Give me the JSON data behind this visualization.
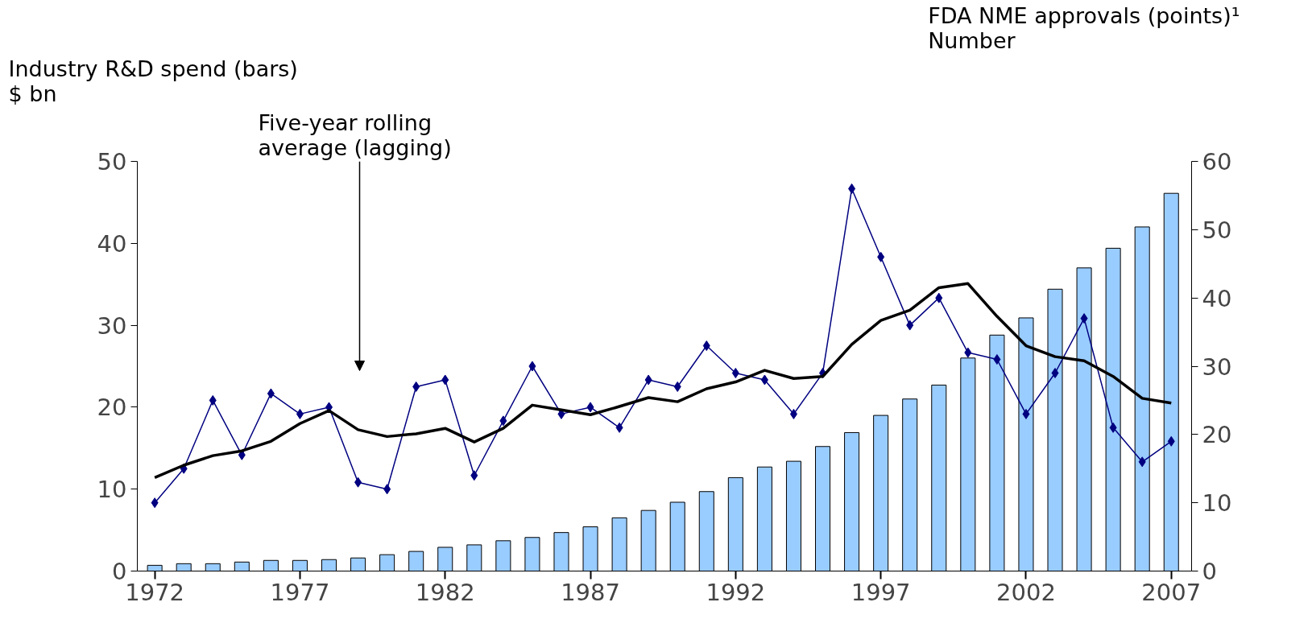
{
  "chart_data": {
    "type": "bar",
    "x": [
      1972,
      1973,
      1974,
      1975,
      1976,
      1977,
      1978,
      1979,
      1980,
      1981,
      1982,
      1983,
      1984,
      1985,
      1986,
      1987,
      1988,
      1989,
      1990,
      1991,
      1992,
      1993,
      1994,
      1995,
      1996,
      1997,
      1998,
      1999,
      2000,
      2001,
      2002,
      2003,
      2004,
      2005,
      2006,
      2007
    ],
    "ylabel": "Industry R&D spend (bars)\n$ bn",
    "y2label": "FDA NME approvals (points)¹\nNumber",
    "xlim": [
      1971.4,
      2007.7
    ],
    "xticks": [
      1972,
      1977,
      1982,
      1987,
      1992,
      1997,
      2002,
      2007
    ],
    "ylim": [
      0,
      50
    ],
    "yticks": [
      0,
      10,
      20,
      30,
      40,
      50
    ],
    "y2lim": [
      0,
      60
    ],
    "y2ticks": [
      0,
      10,
      20,
      30,
      40,
      50,
      60
    ],
    "grid": false,
    "annotations": [
      "Five-year rolling average (lagging)"
    ],
    "series": [
      {
        "color": "#99ccff",
        "values": [
          0.7,
          0.9,
          0.9,
          1.1,
          1.3,
          1.3,
          1.4,
          1.6,
          2.0,
          2.4,
          2.9,
          3.2,
          3.7,
          4.1,
          4.7,
          5.4,
          6.5,
          7.4,
          8.4,
          9.7,
          11.4,
          12.7,
          13.4,
          15.2,
          16.9,
          19.0,
          21.0,
          22.7,
          26.0,
          28.8,
          30.9,
          34.4,
          37.0,
          39.4,
          42.0,
          46.1
        ]
      },
      {
        "type": "line",
        "axis": "y2",
        "color": "#000080",
        "marker": "diamond",
        "values": [
          10,
          15,
          25,
          17,
          26,
          23,
          24,
          13,
          12,
          27,
          28,
          14,
          22,
          30,
          23,
          24,
          21,
          28,
          27,
          33,
          29,
          28,
          23,
          29,
          56,
          46,
          36,
          40,
          32,
          31,
          23,
          29,
          37,
          21,
          16,
          19
        ]
      },
      {
        "type": "line",
        "axis": "y2",
        "color": "#000000",
        "marker": "none",
        "values": [
          13.7,
          15.5,
          16.9,
          17.6,
          19.0,
          21.6,
          23.5,
          20.7,
          19.7,
          20.1,
          20.9,
          18.9,
          20.9,
          24.3,
          23.6,
          22.9,
          24.1,
          25.4,
          24.8,
          26.7,
          27.7,
          29.4,
          28.2,
          28.5,
          33.2,
          36.7,
          38.2,
          41.5,
          42.1,
          37.3,
          33.0,
          31.4,
          30.8,
          28.5,
          25.3,
          24.6
        ]
      }
    ]
  }
}
